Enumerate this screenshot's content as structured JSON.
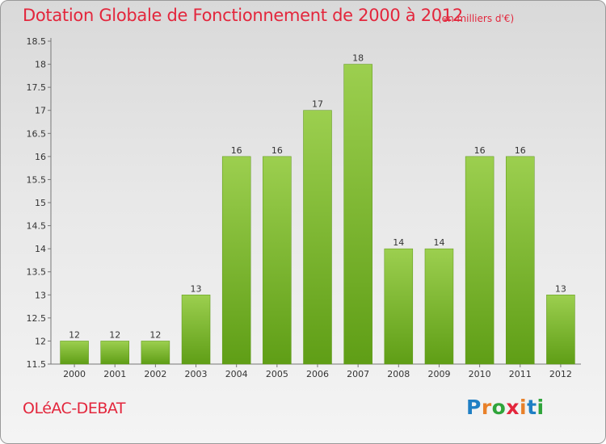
{
  "title": "Dotation Globale de Fonctionnement de 2000 à 2012",
  "unit_note": "(en milliers d'€)",
  "commune": "OLéAC-DEBAT",
  "logo": "Proxiti",
  "colors": {
    "title": "#e3263c",
    "bar_top": "#9ccf4f",
    "bar_bottom": "#5f9e16",
    "logo_blue": "#1f7fc4",
    "logo_orange": "#e8812a",
    "logo_green": "#2fa43a"
  },
  "chart_data": {
    "type": "bar",
    "title": "Dotation Globale de Fonctionnement de 2000 à 2012",
    "subtitle": "(en milliers d'€)",
    "categories": [
      "2000",
      "2001",
      "2002",
      "2003",
      "2004",
      "2005",
      "2006",
      "2007",
      "2008",
      "2009",
      "2010",
      "2011",
      "2012"
    ],
    "values": [
      12,
      12,
      12,
      13,
      16,
      16,
      17,
      18,
      14,
      14,
      16,
      16,
      13
    ],
    "value_labels": [
      "12",
      "12",
      "12",
      "13",
      "16",
      "16",
      "17",
      "18",
      "14",
      "14",
      "16",
      "16",
      "13"
    ],
    "ylim": [
      11.5,
      18.5
    ],
    "yticks": [
      "11.5",
      "12",
      "12.5",
      "13",
      "13.5",
      "14",
      "14.5",
      "15",
      "15.5",
      "16",
      "16.5",
      "17",
      "17.5",
      "18",
      "18.5"
    ],
    "xlabel": "",
    "ylabel": "",
    "grid": false,
    "legend": "none"
  }
}
